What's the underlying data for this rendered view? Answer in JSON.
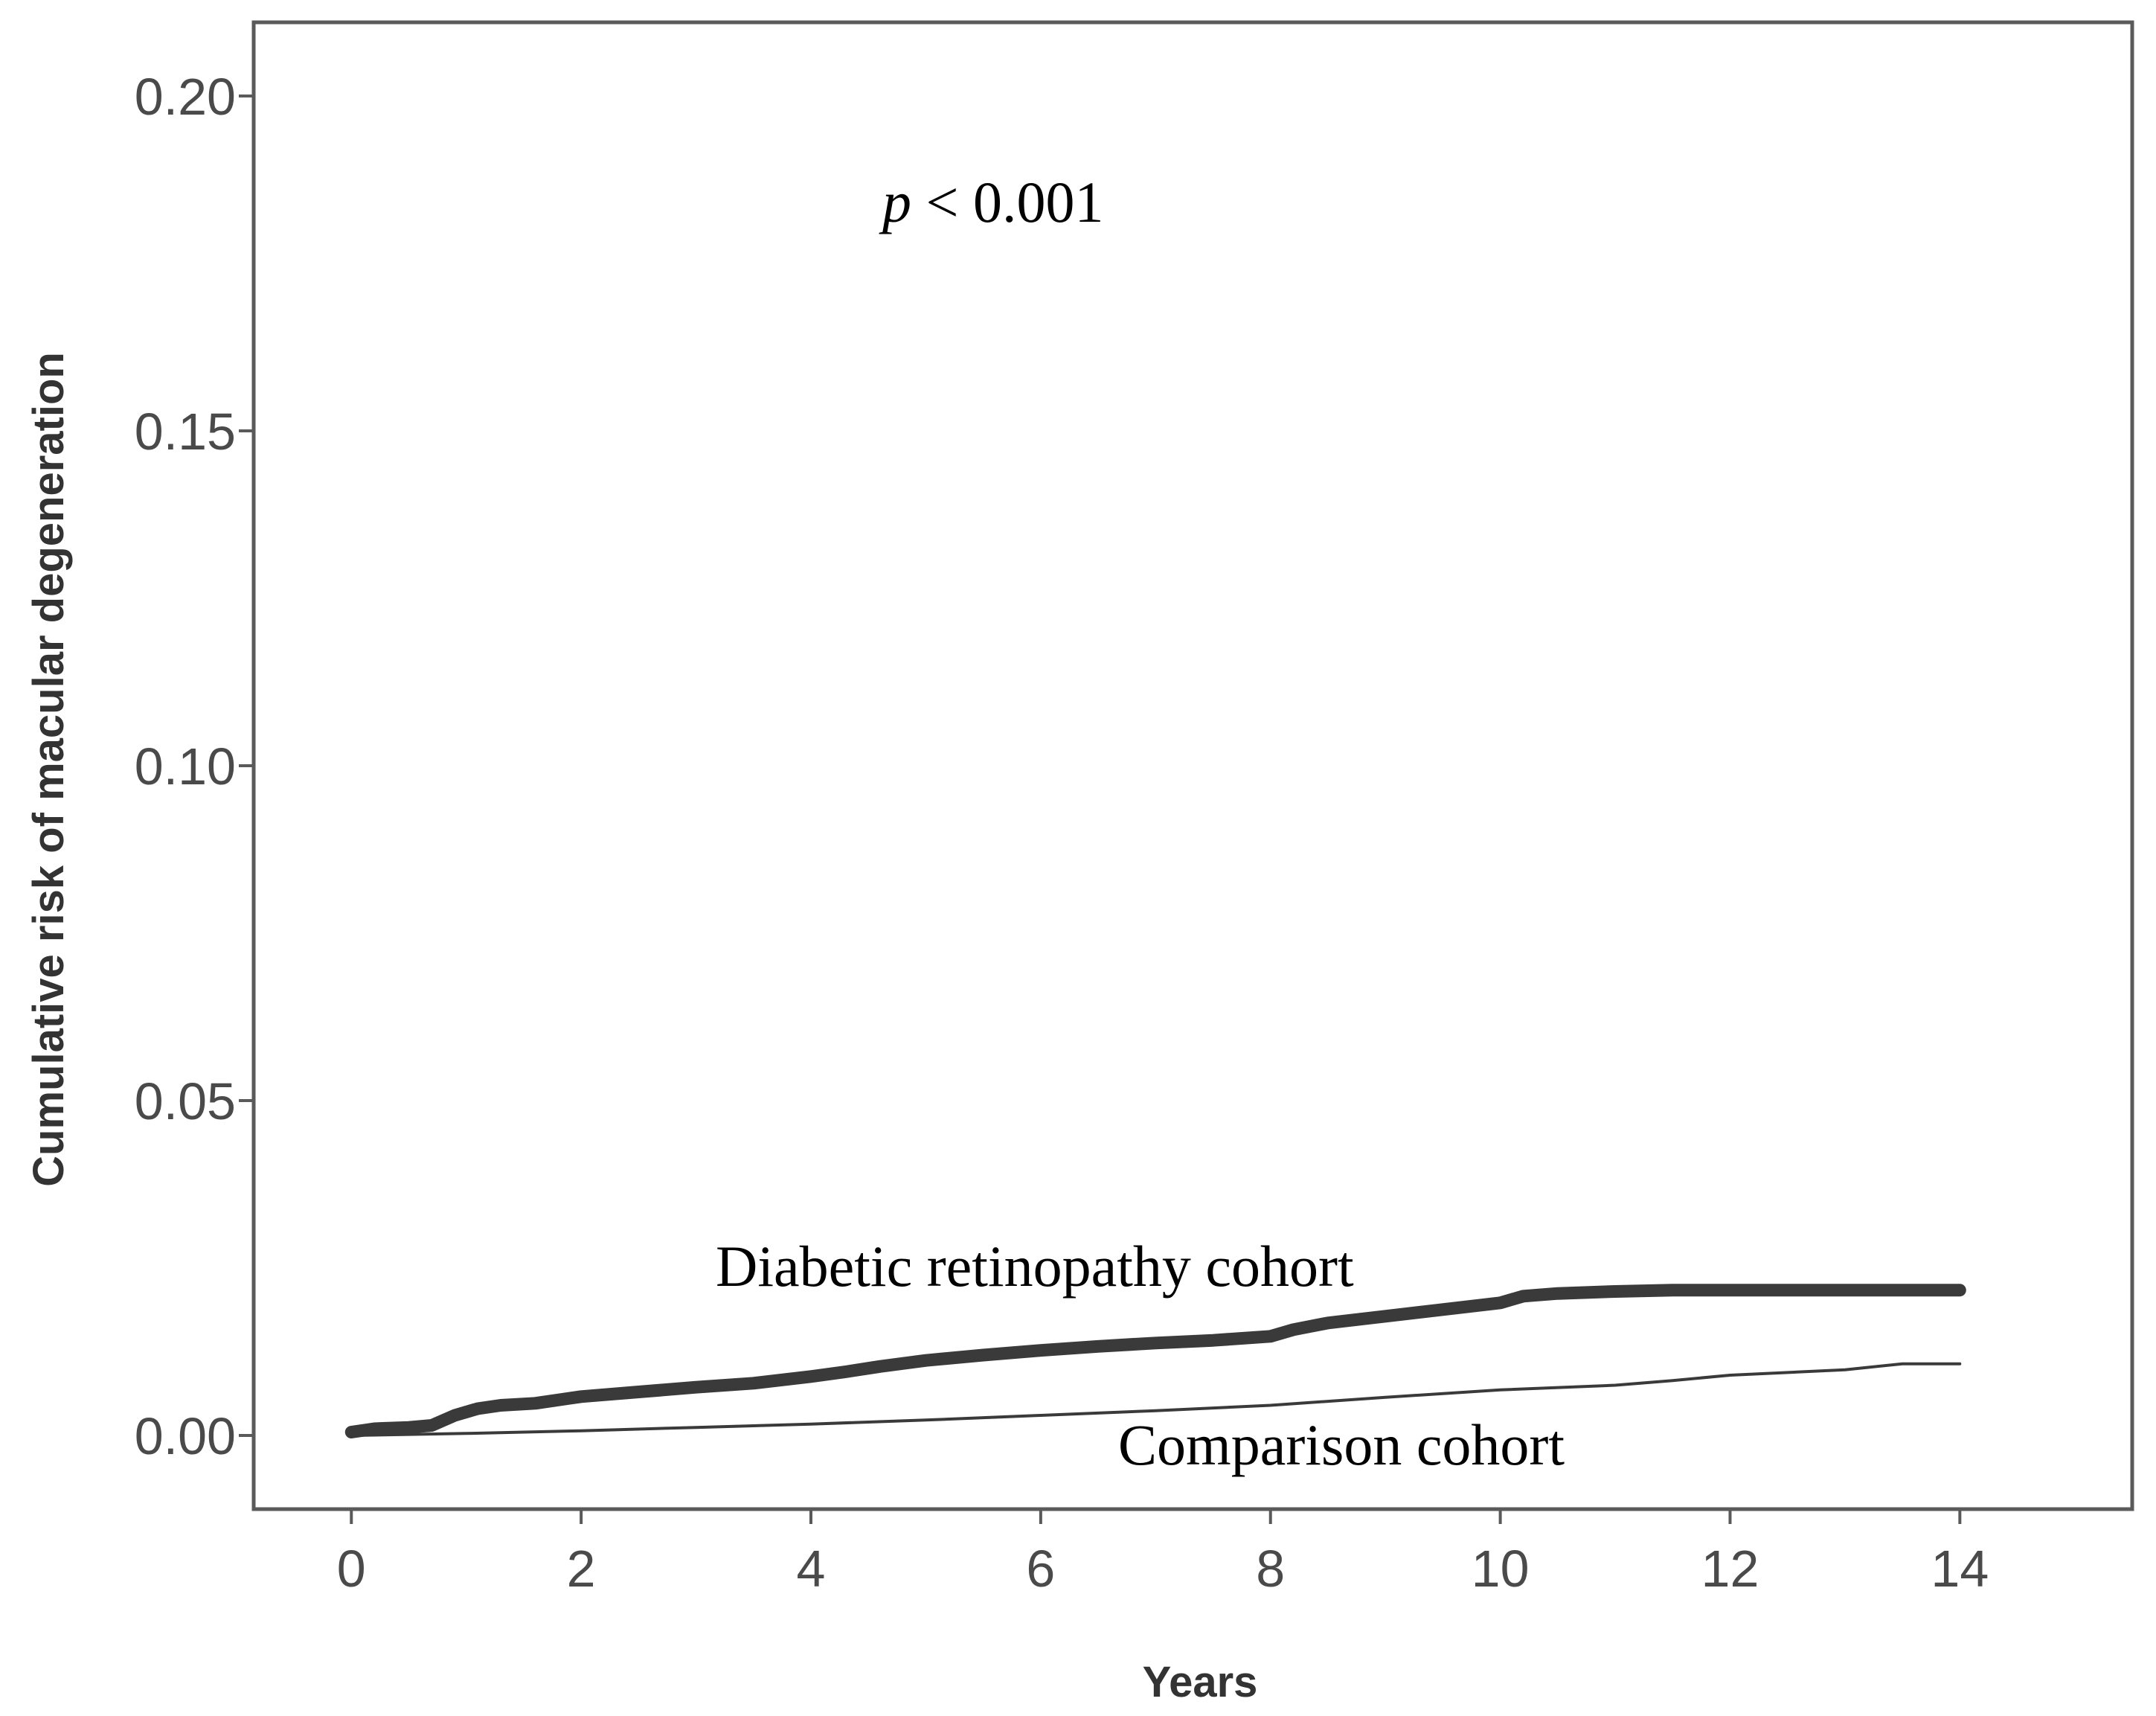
{
  "chart_data": {
    "type": "line",
    "title": "",
    "xlabel": "Years",
    "ylabel": "Cumulative risk of macular degeneration",
    "xlim": [
      -0.85,
      15.5
    ],
    "ylim": [
      -0.011,
      0.211
    ],
    "xticks": [
      0,
      2,
      4,
      6,
      8,
      10,
      12,
      14
    ],
    "xtick_labels": [
      "0",
      "2",
      "4",
      "6",
      "8",
      "10",
      "12",
      "14"
    ],
    "yticks": [
      0.0,
      0.05,
      0.1,
      0.15,
      0.2
    ],
    "ytick_labels": [
      "0.00",
      "0.05",
      "0.10",
      "0.15",
      "0.20"
    ],
    "grid": false,
    "annotations": {
      "p_symbol": "p",
      "p_rest": " < 0.001"
    },
    "series": [
      {
        "name": "Diabetic retinopathy cohort",
        "color": "#3a3a3a",
        "style": "thick",
        "x": [
          0,
          0.2,
          0.5,
          0.7,
          0.9,
          1.1,
          1.3,
          1.6,
          2.0,
          2.5,
          3.0,
          3.5,
          4.0,
          4.3,
          4.6,
          5.0,
          5.5,
          6.0,
          6.5,
          7.0,
          7.5,
          8.0,
          8.2,
          8.5,
          9.0,
          9.5,
          10.0,
          10.2,
          10.5,
          11.0,
          11.5,
          12.0,
          13.0,
          14.0
        ],
        "values": [
          0.0005,
          0.001,
          0.0012,
          0.0015,
          0.003,
          0.004,
          0.0045,
          0.0048,
          0.0058,
          0.0065,
          0.0072,
          0.0078,
          0.0088,
          0.0095,
          0.0103,
          0.0112,
          0.012,
          0.0127,
          0.0133,
          0.0138,
          0.0142,
          0.0148,
          0.0158,
          0.0168,
          0.0178,
          0.0188,
          0.0198,
          0.0208,
          0.0212,
          0.0215,
          0.0217,
          0.0217,
          0.0217,
          0.0217
        ]
      },
      {
        "name": "Comparison cohort",
        "color": "#3a3a3a",
        "style": "thin",
        "x": [
          0,
          1,
          2,
          3,
          4,
          5,
          6,
          7,
          8,
          9,
          10,
          11,
          11.5,
          12,
          13,
          13.5,
          14.0
        ],
        "values": [
          0.0,
          0.0003,
          0.0007,
          0.0012,
          0.0017,
          0.0023,
          0.003,
          0.0037,
          0.0045,
          0.0057,
          0.0068,
          0.0075,
          0.0082,
          0.009,
          0.0098,
          0.0107,
          0.0107
        ]
      }
    ]
  }
}
